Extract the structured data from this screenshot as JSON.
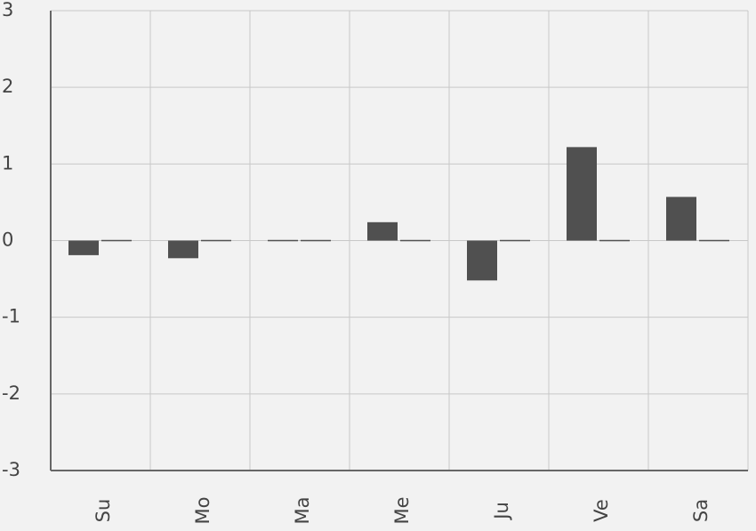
{
  "chart_data": {
    "type": "bar",
    "categories": [
      "Su",
      "Mo",
      "Ma",
      "Me",
      "Ju",
      "Ve",
      "Sa"
    ],
    "series": [
      {
        "color": "#505050",
        "values": [
          -0.19,
          -0.23,
          0,
          0.24,
          -0.52,
          1.22,
          0.57
        ]
      },
      {
        "color": "#505050",
        "values": [
          0,
          0,
          0,
          0,
          0,
          0,
          0
        ]
      }
    ],
    "ylim": [
      -3,
      3
    ],
    "yticks": [
      -3,
      -2,
      -1,
      0,
      1,
      2,
      3
    ],
    "grid": true
  }
}
